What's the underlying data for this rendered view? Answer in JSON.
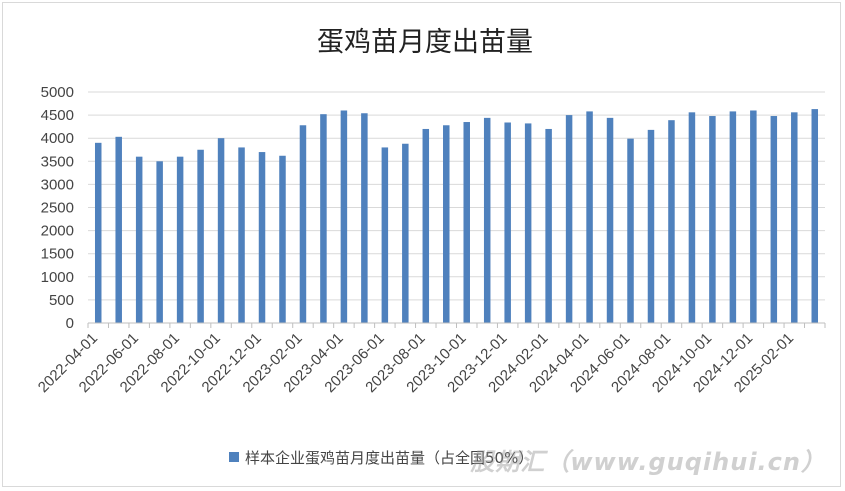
{
  "chart_data": {
    "type": "bar",
    "title": "蛋鸡苗月度出苗量",
    "xlabel": "",
    "ylabel": "",
    "ylim": [
      0,
      5000
    ],
    "yticks": [
      0,
      500,
      1000,
      1500,
      2000,
      2500,
      3000,
      3500,
      4000,
      4500,
      5000
    ],
    "grid": true,
    "legend_position": "bottom",
    "bar_color": "#4f81bd",
    "categories": [
      "2022-04-01",
      "2022-05-01",
      "2022-06-01",
      "2022-07-01",
      "2022-08-01",
      "2022-09-01",
      "2022-10-01",
      "2022-11-01",
      "2022-12-01",
      "2023-01-01",
      "2023-02-01",
      "2023-03-01",
      "2023-04-01",
      "2023-05-01",
      "2023-06-01",
      "2023-07-01",
      "2023-08-01",
      "2023-09-01",
      "2023-10-01",
      "2023-11-01",
      "2023-12-01",
      "2024-01-01",
      "2024-02-01",
      "2024-03-01",
      "2024-04-01",
      "2024-05-01",
      "2024-06-01",
      "2024-07-01",
      "2024-08-01",
      "2024-09-01",
      "2024-10-01",
      "2024-11-01",
      "2024-12-01",
      "2025-01-01",
      "2025-02-01",
      "2025-03-01"
    ],
    "xtick_labels": [
      "2022-04-01",
      "2022-06-01",
      "2022-08-01",
      "2022-10-01",
      "2022-12-01",
      "2023-02-01",
      "2023-04-01",
      "2023-06-01",
      "2023-08-01",
      "2023-10-01",
      "2023-12-01",
      "2024-02-01",
      "2024-04-01",
      "2024-06-01",
      "2024-08-01",
      "2024-10-01",
      "2024-12-01",
      "2025-02-01"
    ],
    "series": [
      {
        "name": "样本企业蛋鸡苗月度出苗量（占全国50%）",
        "values": [
          3900,
          4030,
          3600,
          3500,
          3600,
          3750,
          4000,
          3800,
          3700,
          3620,
          4280,
          4520,
          4600,
          4540,
          3800,
          3880,
          4200,
          4280,
          4350,
          4440,
          4340,
          4320,
          4200,
          4500,
          4580,
          4440,
          3990,
          4180,
          4390,
          4560,
          4480,
          4580,
          4600,
          4480,
          4560,
          4630
        ]
      }
    ]
  },
  "legend_label": "样本企业蛋鸡苗月度出苗量（占全国50%）",
  "watermark": "股期汇（www.guqihui.cn）"
}
